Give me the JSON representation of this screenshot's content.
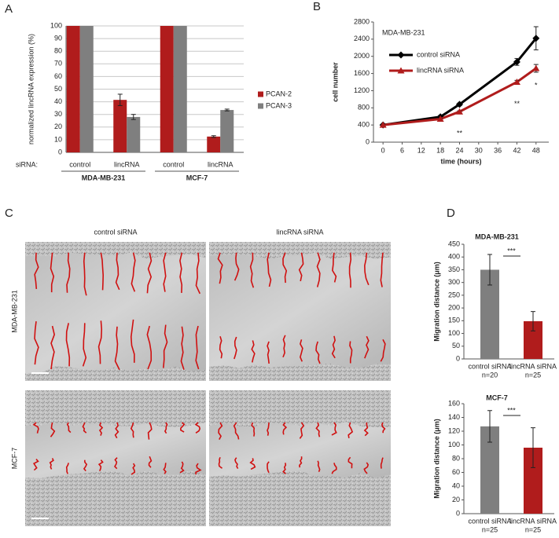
{
  "chart_data": [
    {
      "type": "bar",
      "panel_label": "A",
      "ylabel": "normalized lincRNA expression (%)",
      "category_axis_label": "siRNA:",
      "categories": [
        "control",
        "lincRNA",
        "control",
        "lincRNA"
      ],
      "groups": [
        "MDA-MB-231",
        "MCF-7"
      ],
      "series": [
        {
          "name": "PCAN-2",
          "color": "#b01c1c",
          "values": [
            100,
            41.5,
            100,
            12.5
          ],
          "errors": [
            0,
            4.5,
            0,
            0.7
          ]
        },
        {
          "name": "PCAN-3",
          "color": "#7f7f7f",
          "values": [
            100,
            28,
            100,
            33.5
          ],
          "errors": [
            0,
            2,
            0,
            0.7
          ]
        }
      ],
      "ylim": [
        0,
        100
      ],
      "yticks": [
        0,
        10,
        20,
        30,
        40,
        50,
        60,
        70,
        80,
        90,
        100
      ],
      "grid": true,
      "legend": "right"
    },
    {
      "type": "line",
      "panel_label": "B",
      "title": "MDA-MB-231",
      "xlabel": "time (hours)",
      "ylabel": "cell number",
      "x": [
        0,
        18,
        24,
        42,
        48
      ],
      "series": [
        {
          "name": "control siRNA",
          "color": "#000000",
          "marker": "diamond",
          "values": [
            400,
            590,
            880,
            1870,
            2420
          ],
          "errors": [
            20,
            30,
            30,
            80,
            270
          ]
        },
        {
          "name": "lincRNA siRNA",
          "color": "#b01c1c",
          "marker": "triangle",
          "values": [
            400,
            540,
            710,
            1400,
            1720
          ],
          "errors": [
            20,
            20,
            20,
            40,
            90
          ]
        }
      ],
      "annotations": [
        {
          "x": 24,
          "text": "**"
        },
        {
          "x": 42,
          "text": "**"
        },
        {
          "x": 48,
          "text": "*"
        }
      ],
      "xlim": [
        -3,
        52
      ],
      "xticks": [
        0,
        6,
        12,
        18,
        24,
        30,
        36,
        42,
        48
      ],
      "ylim": [
        0,
        2800
      ],
      "yticks": [
        0,
        400,
        800,
        1200,
        1600,
        2000,
        2400,
        2800
      ],
      "grid": false,
      "legend": "upper left"
    },
    {
      "type": "bar",
      "panel_label": "D",
      "title": "MDA-MB-231",
      "ylabel": "Migration distance (μm)",
      "categories": [
        "control siRNA",
        "lincRNA siRNA"
      ],
      "n_labels": [
        "n=20",
        "n=25"
      ],
      "colors": [
        "#7f7f7f",
        "#b01c1c"
      ],
      "values": [
        350,
        148
      ],
      "errors": [
        60,
        38
      ],
      "significance": "***",
      "ylim": [
        0,
        450
      ],
      "yticks": [
        0,
        50,
        100,
        150,
        200,
        250,
        300,
        350,
        400,
        450
      ],
      "grid": false
    },
    {
      "type": "bar",
      "title": "MCF-7",
      "ylabel": "Migration distance (μm)",
      "categories": [
        "control siRNA",
        "lincRNA siRNA"
      ],
      "n_labels": [
        "n=25",
        "n=25"
      ],
      "colors": [
        "#7f7f7f",
        "#b01c1c"
      ],
      "values": [
        127,
        96
      ],
      "errors": [
        23,
        29
      ],
      "significance": "***",
      "ylim": [
        0,
        160
      ],
      "yticks": [
        0,
        20,
        40,
        60,
        80,
        100,
        120,
        140,
        160
      ],
      "grid": false
    }
  ],
  "images": {
    "panel_label": "C",
    "column_labels": [
      "control siRNA",
      "lincRNA siRNA"
    ],
    "row_labels": [
      "MDA-MB-231",
      "MCF-7"
    ]
  }
}
